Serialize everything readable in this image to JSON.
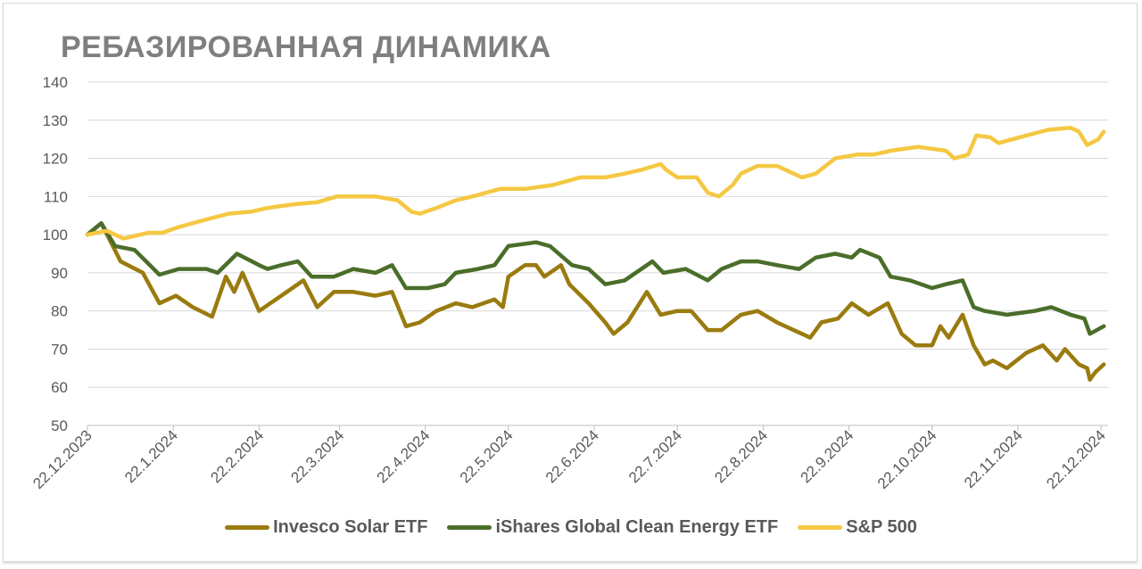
{
  "chart_data": {
    "type": "line",
    "title": "РЕБАЗИРОВАННАЯ ДИНАМИКА",
    "xlabel": "",
    "ylabel": "",
    "x_unit": "days since 22.12.2023",
    "xlim": [
      0,
      368
    ],
    "ylim": [
      50,
      140
    ],
    "y_ticks": [
      50,
      60,
      70,
      80,
      90,
      100,
      110,
      120,
      130,
      140
    ],
    "x_ticks": [
      {
        "day": 0,
        "label": "22.12.2023"
      },
      {
        "day": 31,
        "label": "22.1.2024"
      },
      {
        "day": 62,
        "label": "22.2.2024"
      },
      {
        "day": 91,
        "label": "22.3.2024"
      },
      {
        "day": 122,
        "label": "22.4.2024"
      },
      {
        "day": 152,
        "label": "22.5.2024"
      },
      {
        "day": 183,
        "label": "22.6.2024"
      },
      {
        "day": 213,
        "label": "22.7.2024"
      },
      {
        "day": 244,
        "label": "22.8.2024"
      },
      {
        "day": 275,
        "label": "22.9.2024"
      },
      {
        "day": 305,
        "label": "22.10.2024"
      },
      {
        "day": 336,
        "label": "22.11.2024"
      },
      {
        "day": 366,
        "label": "22.12.2024"
      }
    ],
    "grid": true,
    "legend_position": "bottom",
    "series": [
      {
        "name": "Invesco Solar ETF",
        "color": "#9a7b0f",
        "points": [
          [
            0,
            100
          ],
          [
            5,
            103
          ],
          [
            12,
            93
          ],
          [
            20,
            90
          ],
          [
            26,
            82
          ],
          [
            32,
            84
          ],
          [
            38,
            81
          ],
          [
            45,
            78.5
          ],
          [
            50,
            89
          ],
          [
            53,
            85
          ],
          [
            56,
            90
          ],
          [
            62,
            80
          ],
          [
            70,
            84
          ],
          [
            78,
            88
          ],
          [
            83,
            81
          ],
          [
            89,
            85
          ],
          [
            96,
            85
          ],
          [
            104,
            84
          ],
          [
            110,
            85
          ],
          [
            115,
            76
          ],
          [
            120,
            77
          ],
          [
            126,
            80
          ],
          [
            133,
            82
          ],
          [
            139,
            81
          ],
          [
            147,
            83
          ],
          [
            150,
            81
          ],
          [
            152,
            89
          ],
          [
            158,
            92
          ],
          [
            162,
            92
          ],
          [
            165,
            89
          ],
          [
            171,
            92
          ],
          [
            174,
            87
          ],
          [
            181,
            82
          ],
          [
            187,
            77
          ],
          [
            190,
            74
          ],
          [
            195,
            77
          ],
          [
            202,
            85
          ],
          [
            207,
            79
          ],
          [
            213,
            80
          ],
          [
            218,
            80
          ],
          [
            224,
            75
          ],
          [
            229,
            75
          ],
          [
            236,
            79
          ],
          [
            242,
            80
          ],
          [
            249,
            77
          ],
          [
            255,
            75
          ],
          [
            261,
            73
          ],
          [
            265,
            77
          ],
          [
            271,
            78
          ],
          [
            276,
            82
          ],
          [
            282,
            79
          ],
          [
            289,
            82
          ],
          [
            294,
            74
          ],
          [
            299,
            71
          ],
          [
            305,
            71
          ],
          [
            308,
            76
          ],
          [
            311,
            73
          ],
          [
            316,
            79
          ],
          [
            320,
            71
          ],
          [
            324,
            66
          ],
          [
            327,
            67
          ],
          [
            332,
            65
          ],
          [
            339,
            69
          ],
          [
            345,
            71
          ],
          [
            350,
            67
          ],
          [
            353,
            70
          ],
          [
            358,
            66
          ],
          [
            361,
            65
          ],
          [
            362,
            62
          ],
          [
            364,
            64
          ],
          [
            367,
            66
          ]
        ]
      },
      {
        "name": "iShares Global Clean Energy ETF",
        "color": "#4a6e2a",
        "points": [
          [
            0,
            100
          ],
          [
            5,
            103
          ],
          [
            10,
            97
          ],
          [
            17,
            96
          ],
          [
            26,
            89.5
          ],
          [
            33,
            91
          ],
          [
            43,
            91
          ],
          [
            47,
            90
          ],
          [
            54,
            95
          ],
          [
            62,
            92
          ],
          [
            65,
            91
          ],
          [
            70,
            92
          ],
          [
            76,
            93
          ],
          [
            81,
            89
          ],
          [
            89,
            89
          ],
          [
            96,
            91
          ],
          [
            104,
            90
          ],
          [
            110,
            92
          ],
          [
            115,
            86
          ],
          [
            123,
            86
          ],
          [
            129,
            87
          ],
          [
            133,
            90
          ],
          [
            141,
            91
          ],
          [
            147,
            92
          ],
          [
            152,
            97
          ],
          [
            162,
            98
          ],
          [
            167,
            97
          ],
          [
            175,
            92
          ],
          [
            181,
            91
          ],
          [
            187,
            87
          ],
          [
            194,
            88
          ],
          [
            200,
            91
          ],
          [
            204,
            93
          ],
          [
            208,
            90
          ],
          [
            216,
            91
          ],
          [
            224,
            88
          ],
          [
            229,
            91
          ],
          [
            236,
            93
          ],
          [
            242,
            93
          ],
          [
            249,
            92
          ],
          [
            257,
            91
          ],
          [
            263,
            94
          ],
          [
            270,
            95
          ],
          [
            276,
            94
          ],
          [
            279,
            96
          ],
          [
            286,
            94
          ],
          [
            290,
            89
          ],
          [
            297,
            88
          ],
          [
            305,
            86
          ],
          [
            310,
            87
          ],
          [
            316,
            88
          ],
          [
            320,
            81
          ],
          [
            324,
            80
          ],
          [
            332,
            79
          ],
          [
            342,
            80
          ],
          [
            348,
            81
          ],
          [
            355,
            79
          ],
          [
            360,
            78
          ],
          [
            362,
            74
          ],
          [
            367,
            76
          ]
        ]
      },
      {
        "name": "S&P 500",
        "color": "#f5c843",
        "points": [
          [
            0,
            100
          ],
          [
            7,
            101
          ],
          [
            13,
            99
          ],
          [
            22,
            100.5
          ],
          [
            27,
            100.5
          ],
          [
            33,
            102
          ],
          [
            43,
            104
          ],
          [
            51,
            105.5
          ],
          [
            59,
            106
          ],
          [
            65,
            107
          ],
          [
            75,
            108
          ],
          [
            83,
            108.5
          ],
          [
            90,
            110
          ],
          [
            104,
            110
          ],
          [
            112,
            109
          ],
          [
            117,
            106
          ],
          [
            120,
            105.5
          ],
          [
            126,
            107
          ],
          [
            133,
            109
          ],
          [
            139,
            110
          ],
          [
            149,
            112
          ],
          [
            158,
            112
          ],
          [
            168,
            113
          ],
          [
            178,
            115
          ],
          [
            187,
            115
          ],
          [
            194,
            116
          ],
          [
            200,
            117
          ],
          [
            207,
            118.5
          ],
          [
            209,
            117
          ],
          [
            213,
            115
          ],
          [
            220,
            115
          ],
          [
            224,
            111
          ],
          [
            228,
            110
          ],
          [
            233,
            113
          ],
          [
            236,
            116
          ],
          [
            242,
            118
          ],
          [
            249,
            118
          ],
          [
            258,
            115
          ],
          [
            263,
            116
          ],
          [
            270,
            120
          ],
          [
            278,
            121
          ],
          [
            284,
            121
          ],
          [
            290,
            122
          ],
          [
            300,
            123
          ],
          [
            310,
            122
          ],
          [
            313,
            120
          ],
          [
            318,
            121
          ],
          [
            321,
            126
          ],
          [
            326,
            125.5
          ],
          [
            329,
            124
          ],
          [
            339,
            126
          ],
          [
            347,
            127.5
          ],
          [
            355,
            128
          ],
          [
            358,
            127
          ],
          [
            361,
            123.5
          ],
          [
            365,
            125
          ],
          [
            367,
            127
          ]
        ]
      }
    ]
  }
}
